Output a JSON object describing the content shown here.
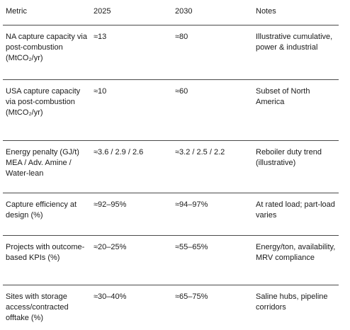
{
  "table": {
    "headers": [
      "Metric",
      "2025",
      "2030",
      "Notes"
    ],
    "rows": [
      [
        "NA capture capacity via post-combustion (MtCO₂/yr)",
        "≈13",
        "≈80",
        "Illustrative cumulative, power & industrial"
      ],
      [
        "USA capture capacity via post-combustion (MtCO₂/yr)",
        "≈10",
        "≈60",
        "Subset of North America"
      ],
      [
        "Energy penalty (GJ/t) MEA / Adv. Amine / Water-lean",
        "≈3.6 / 2.9 / 2.6",
        "≈3.2 / 2.5 / 2.2",
        "Reboiler duty trend (illustrative)"
      ],
      [
        "Capture efficiency at design (%)",
        "≈92–95%",
        "≈94–97%",
        "At rated load; part-load varies"
      ],
      [
        "Projects with outcome-based KPIs (%)",
        "≈20–25%",
        "≈55–65%",
        "Energy/ton, availability, MRV compliance"
      ],
      [
        "Sites with storage access/contracted offtake (%)",
        "≈30–40%",
        "≈65–75%",
        "Saline hubs, pipeline corridors"
      ]
    ]
  }
}
